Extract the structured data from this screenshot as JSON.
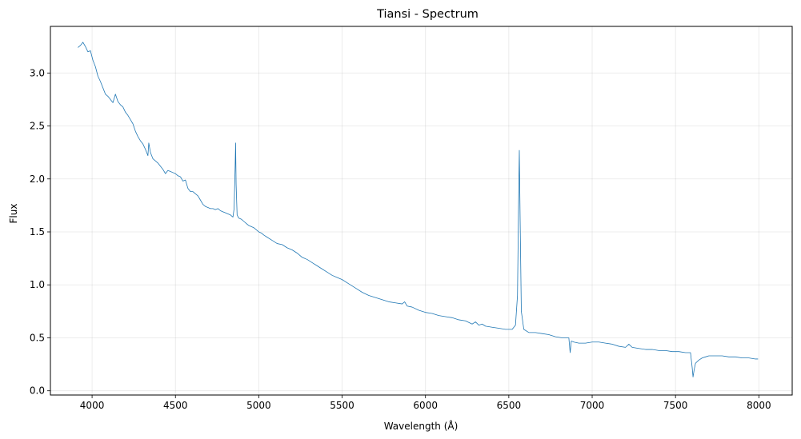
{
  "chart_data": {
    "type": "line",
    "title": "Tiansi - Spectrum",
    "xlabel": "Wavelength (Å)",
    "ylabel": "Flux",
    "xlim": [
      3750,
      8200
    ],
    "ylim": [
      -0.04,
      3.44
    ],
    "xticks": [
      4000,
      4500,
      5000,
      5500,
      6000,
      6500,
      7000,
      7500,
      8000
    ],
    "xtick_labels": [
      "4000",
      "4500",
      "5000",
      "5500",
      "6000",
      "6500",
      "7000",
      "7500",
      "8000"
    ],
    "yticks": [
      0.0,
      0.5,
      1.0,
      1.5,
      2.0,
      2.5,
      3.0
    ],
    "ytick_labels": [
      "0.0",
      "0.5",
      "1.0",
      "1.5",
      "2.0",
      "2.5",
      "3.0"
    ],
    "grid": true,
    "series": [
      {
        "color": "#1f77b4",
        "x": [
          3915,
          3930,
          3945,
          3960,
          3975,
          3990,
          4005,
          4020,
          4035,
          4050,
          4065,
          4080,
          4095,
          4110,
          4125,
          4140,
          4155,
          4170,
          4185,
          4200,
          4215,
          4230,
          4245,
          4260,
          4275,
          4290,
          4305,
          4320,
          4335,
          4340,
          4350,
          4365,
          4380,
          4395,
          4410,
          4425,
          4440,
          4455,
          4470,
          4485,
          4500,
          4515,
          4530,
          4545,
          4560,
          4575,
          4590,
          4605,
          4620,
          4635,
          4650,
          4665,
          4680,
          4695,
          4710,
          4725,
          4740,
          4755,
          4770,
          4785,
          4800,
          4815,
          4830,
          4845,
          4852,
          4858,
          4861,
          4864,
          4870,
          4880,
          4895,
          4910,
          4925,
          4940,
          4955,
          4970,
          4985,
          5000,
          5015,
          5030,
          5050,
          5080,
          5110,
          5140,
          5170,
          5200,
          5230,
          5260,
          5290,
          5320,
          5350,
          5380,
          5410,
          5440,
          5470,
          5500,
          5540,
          5580,
          5620,
          5660,
          5700,
          5740,
          5780,
          5820,
          5860,
          5875,
          5890,
          5920,
          5960,
          6000,
          6040,
          6080,
          6120,
          6160,
          6200,
          6240,
          6280,
          6300,
          6320,
          6340,
          6360,
          6400,
          6440,
          6480,
          6520,
          6540,
          6552,
          6558,
          6563,
          6568,
          6575,
          6590,
          6620,
          6660,
          6700,
          6740,
          6780,
          6820,
          6860,
          6868,
          6875,
          6890,
          6920,
          6960,
          7000,
          7040,
          7080,
          7120,
          7160,
          7200,
          7220,
          7240,
          7280,
          7320,
          7360,
          7400,
          7440,
          7480,
          7520,
          7560,
          7590,
          7600,
          7605,
          7612,
          7620,
          7640,
          7660,
          7680,
          7700,
          7740,
          7780,
          7820,
          7860,
          7900,
          7940,
          7980,
          7995
        ],
        "y": [
          3.24,
          3.26,
          3.29,
          3.25,
          3.2,
          3.21,
          3.12,
          3.06,
          2.97,
          2.92,
          2.86,
          2.8,
          2.78,
          2.75,
          2.72,
          2.8,
          2.73,
          2.7,
          2.68,
          2.63,
          2.6,
          2.56,
          2.52,
          2.45,
          2.4,
          2.36,
          2.33,
          2.28,
          2.22,
          2.34,
          2.25,
          2.19,
          2.17,
          2.15,
          2.12,
          2.09,
          2.05,
          2.08,
          2.07,
          2.06,
          2.05,
          2.03,
          2.02,
          1.98,
          1.99,
          1.91,
          1.88,
          1.88,
          1.86,
          1.84,
          1.8,
          1.76,
          1.74,
          1.73,
          1.72,
          1.72,
          1.71,
          1.72,
          1.7,
          1.69,
          1.68,
          1.67,
          1.66,
          1.64,
          1.72,
          2.1,
          2.34,
          1.95,
          1.66,
          1.63,
          1.62,
          1.6,
          1.58,
          1.56,
          1.55,
          1.54,
          1.52,
          1.5,
          1.49,
          1.47,
          1.45,
          1.42,
          1.39,
          1.38,
          1.35,
          1.33,
          1.3,
          1.26,
          1.24,
          1.21,
          1.18,
          1.15,
          1.12,
          1.09,
          1.07,
          1.05,
          1.01,
          0.97,
          0.93,
          0.9,
          0.88,
          0.86,
          0.84,
          0.83,
          0.82,
          0.84,
          0.8,
          0.79,
          0.76,
          0.74,
          0.73,
          0.71,
          0.7,
          0.69,
          0.67,
          0.66,
          0.63,
          0.65,
          0.62,
          0.63,
          0.61,
          0.6,
          0.59,
          0.58,
          0.58,
          0.62,
          0.9,
          1.7,
          2.27,
          1.6,
          0.75,
          0.58,
          0.55,
          0.55,
          0.54,
          0.53,
          0.51,
          0.5,
          0.5,
          0.36,
          0.47,
          0.46,
          0.45,
          0.45,
          0.46,
          0.46,
          0.45,
          0.44,
          0.42,
          0.41,
          0.44,
          0.41,
          0.4,
          0.39,
          0.39,
          0.38,
          0.38,
          0.37,
          0.37,
          0.36,
          0.36,
          0.22,
          0.13,
          0.2,
          0.26,
          0.29,
          0.31,
          0.32,
          0.33,
          0.33,
          0.33,
          0.32,
          0.32,
          0.31,
          0.31,
          0.3,
          0.3
        ]
      }
    ]
  }
}
